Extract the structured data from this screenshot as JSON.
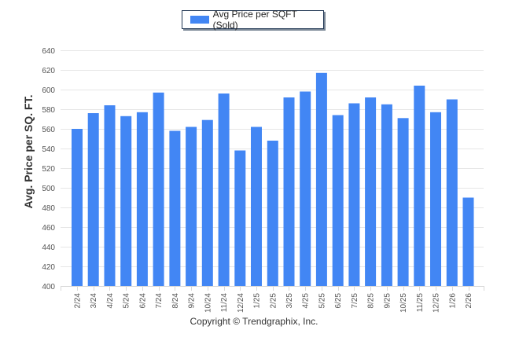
{
  "chart_data": {
    "type": "bar",
    "title": "",
    "legend": {
      "entries": [
        "Avg Price per SQFT (Sold)"
      ],
      "placement": "top-center"
    },
    "xlabel": "",
    "ylabel": "Avg. Price per SQ. FT.",
    "ylim": [
      400,
      640
    ],
    "yticks": [
      400,
      420,
      440,
      460,
      480,
      500,
      520,
      540,
      560,
      580,
      600,
      620,
      640
    ],
    "grid": true,
    "categories": [
      "2/24",
      "3/24",
      "4/24",
      "5/24",
      "6/24",
      "7/24",
      "8/24",
      "9/24",
      "10/24",
      "11/24",
      "12/24",
      "1/25",
      "2/25",
      "3/25",
      "4/25",
      "5/25",
      "6/25",
      "7/25",
      "8/25",
      "9/25",
      "10/25",
      "11/25",
      "12/25",
      "1/26",
      "2/26"
    ],
    "series": [
      {
        "name": "Avg Price per SQFT (Sold)",
        "color": "#4286f4",
        "values": [
          560,
          576,
          584,
          573,
          577,
          597,
          558,
          562,
          569,
          596,
          538,
          562,
          548,
          592,
          598,
          617,
          574,
          586,
          592,
          585,
          571,
          604,
          577,
          590,
          490
        ]
      }
    ]
  },
  "footer": {
    "copyright": "Copyright © Trendgraphix, Inc."
  }
}
